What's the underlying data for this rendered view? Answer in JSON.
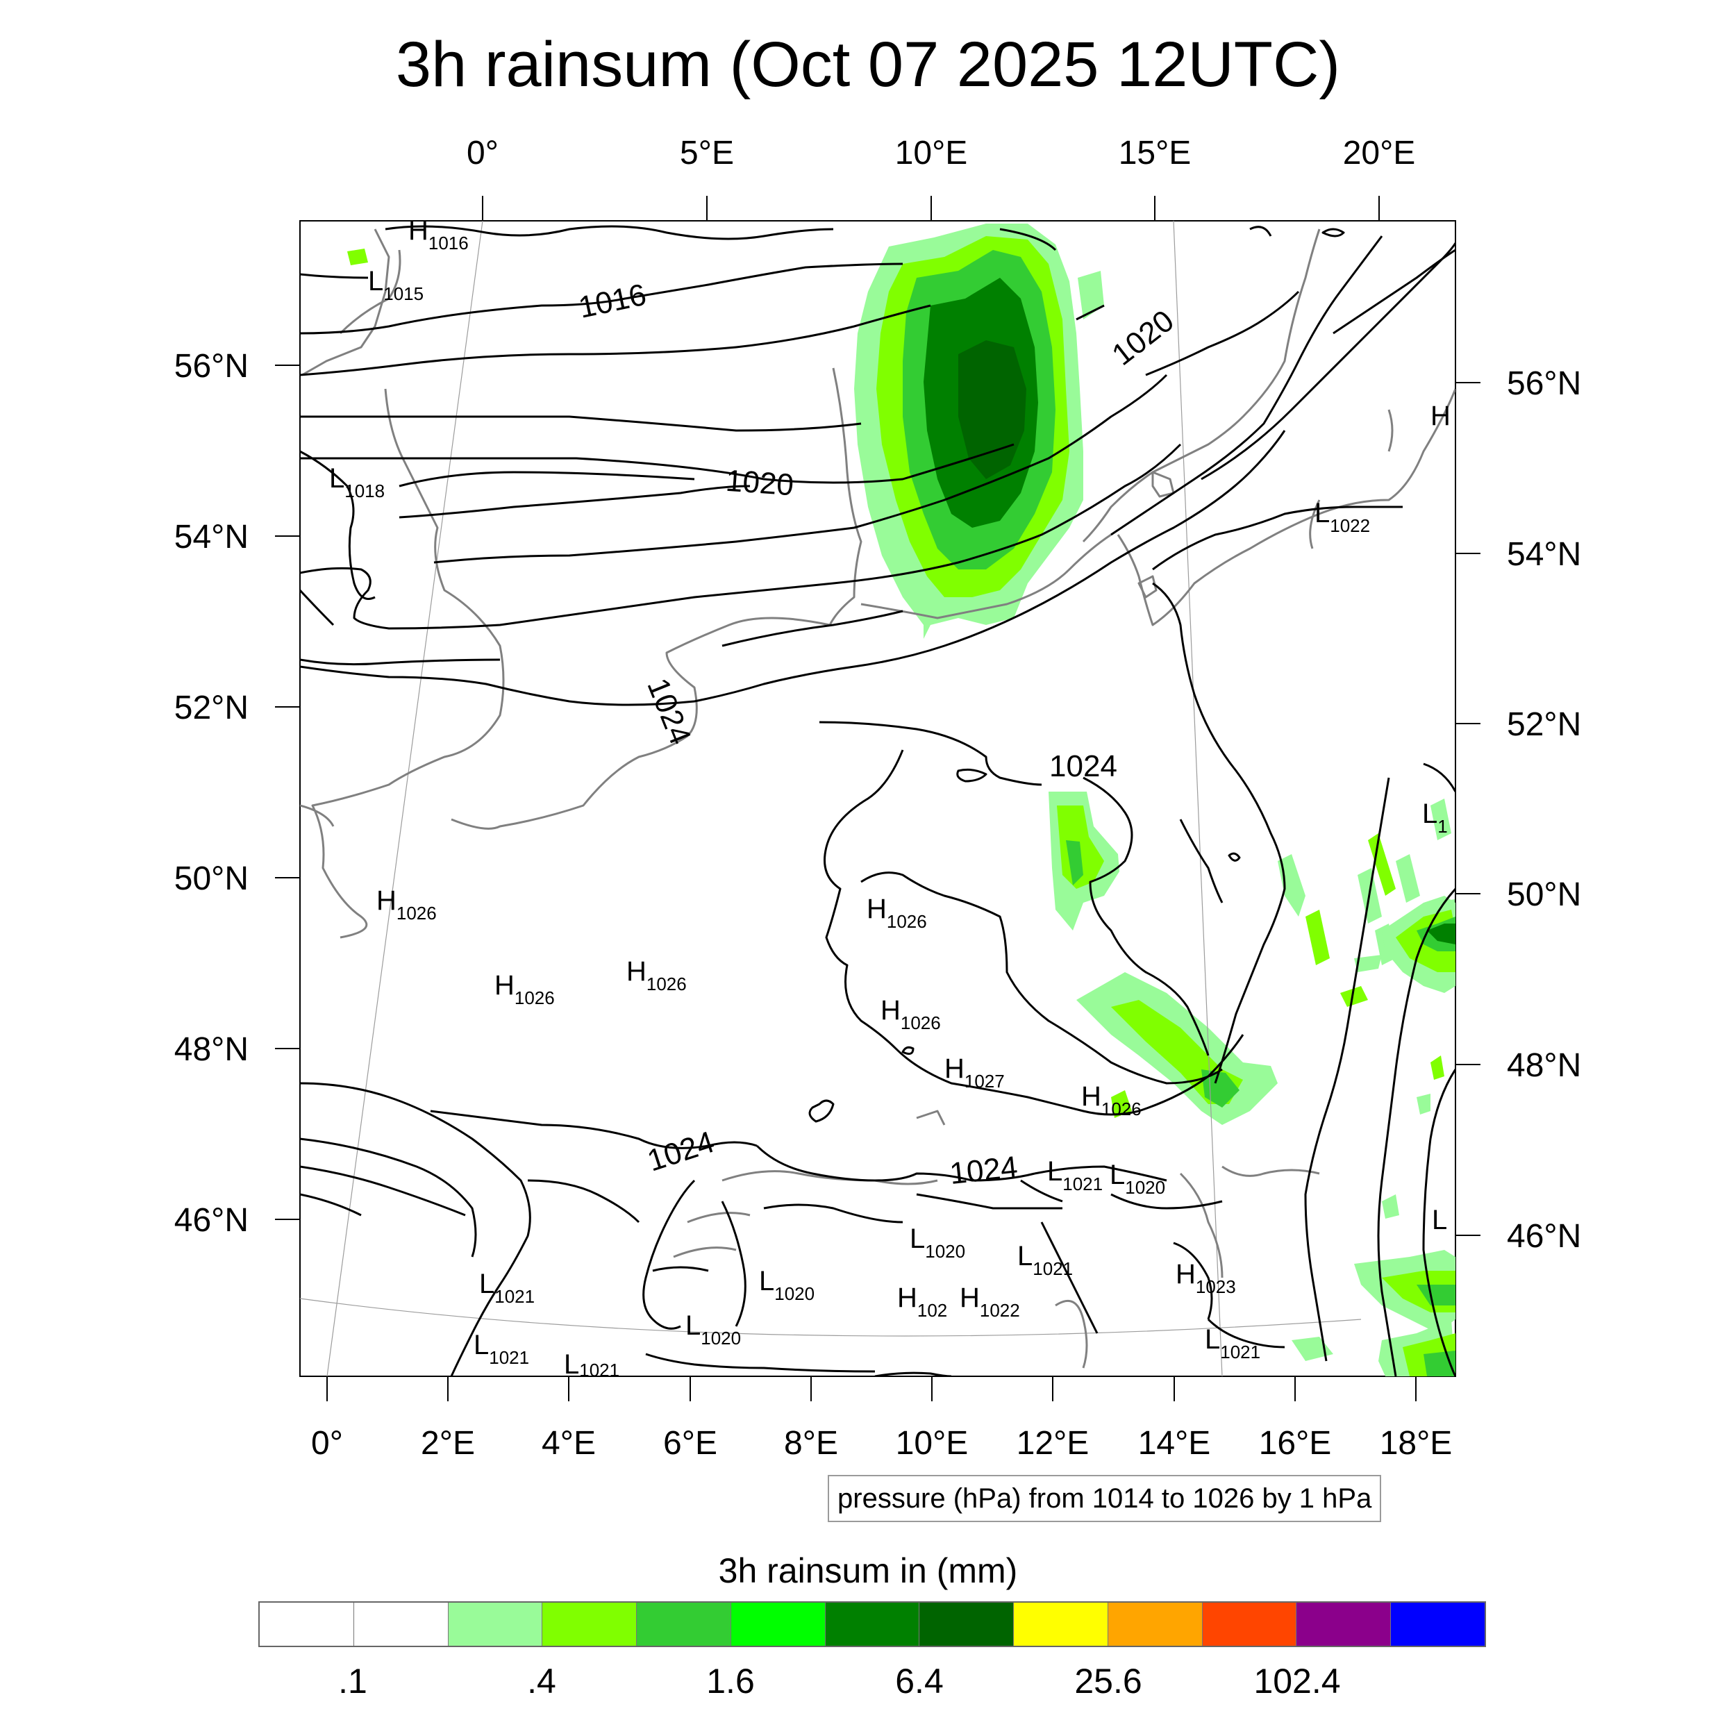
{
  "title": "3h rainsum (Oct 07 2025 12UTC)",
  "top_lon_labels": [
    "0°",
    "5°E",
    "10°E",
    "15°E",
    "20°E"
  ],
  "bottom_lon_labels": [
    "0°",
    "2°E",
    "4°E",
    "6°E",
    "8°E",
    "10°E",
    "12°E",
    "14°E",
    "16°E",
    "18°E"
  ],
  "left_lat_labels": [
    "56°N",
    "54°N",
    "52°N",
    "50°N",
    "48°N",
    "46°N"
  ],
  "right_lat_labels": [
    "56°N",
    "54°N",
    "52°N",
    "50°N",
    "48°N",
    "46°N"
  ],
  "contour_labels": [
    "1016",
    "1020",
    "1020",
    "1024",
    "1024",
    "1024",
    "1024"
  ],
  "pressure_centers": [
    {
      "type": "H",
      "value": "1016"
    },
    {
      "type": "L",
      "value": "1015"
    },
    {
      "type": "L",
      "value": "1018"
    },
    {
      "type": "L",
      "value": "1022"
    },
    {
      "type": "H",
      "value": ""
    },
    {
      "type": "L",
      "value": "1"
    },
    {
      "type": "H",
      "value": "1026"
    },
    {
      "type": "H",
      "value": "1026"
    },
    {
      "type": "H",
      "value": "1026"
    },
    {
      "type": "H",
      "value": "1026"
    },
    {
      "type": "H",
      "value": "1026"
    },
    {
      "type": "H",
      "value": "1027"
    },
    {
      "type": "H",
      "value": "1026"
    },
    {
      "type": "L",
      "value": "1021"
    },
    {
      "type": "L",
      "value": "1020"
    },
    {
      "type": "L",
      "value": "1020"
    },
    {
      "type": "L",
      "value": "1021"
    },
    {
      "type": "L",
      "value": "1020"
    },
    {
      "type": "H",
      "value": "102"
    },
    {
      "type": "H",
      "value": "1022"
    },
    {
      "type": "H",
      "value": "1023"
    },
    {
      "type": "L",
      "value": "1021"
    },
    {
      "type": "L",
      "value": "1020"
    },
    {
      "type": "L",
      "value": "1021"
    },
    {
      "type": "L",
      "value": "1021"
    },
    {
      "type": "L",
      "value": "1021"
    },
    {
      "type": "L",
      "value": ""
    }
  ],
  "info_box": "pressure (hPa) from 1014 to 1026 by 1 hPa",
  "colorbar": {
    "title": "3h rainsum in (mm)",
    "colors": [
      "#ffffff",
      "#ffffff",
      "#99fb99",
      "#80ff00",
      "#33cc33",
      "#00ff00",
      "#008000",
      "#006400",
      "#ffff00",
      "#ffa500",
      "#ff4500",
      "#8b008b",
      "#0000ff"
    ],
    "labels": [
      ".1",
      ".4",
      "1.6",
      "6.4",
      "25.6",
      "102.4"
    ]
  }
}
